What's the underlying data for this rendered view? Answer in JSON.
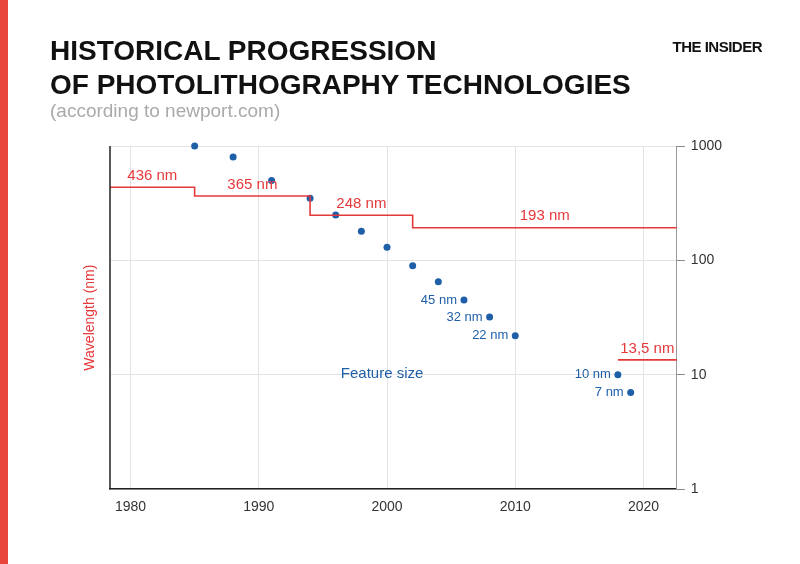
{
  "chart_data": {
    "type": "scatter",
    "title": [
      "HISTORICAL PROGRESSION",
      "OF PHOTOLITHOGRAPHY TECHNOLOGIES"
    ],
    "subtitle": "(according to newport.com)",
    "brand": "THE INSIDER",
    "y_label": "Wavelength (nm)",
    "series": [
      {
        "type": "line",
        "line_style": "step",
        "color": "#e5383b",
        "x": [
          1978.4,
          1985,
          1994,
          2002,
          2022.6
        ],
        "values": [
          436,
          365,
          248,
          193,
          193
        ],
        "value_labels": [
          "436 nm",
          "365 nm",
          "248 nm",
          "193 nm",
          null
        ]
      },
      {
        "type": "line",
        "line_style": "step",
        "color": "#e5383b",
        "x": [
          2018,
          2022.6
        ],
        "values": [
          13.5,
          13.5
        ],
        "value_labels": [
          "13,5 nm",
          null
        ]
      },
      {
        "name": "Feature size",
        "type": "scatter",
        "marker": "circle",
        "color": "#1f5fa8",
        "x": [
          1985,
          1988,
          1991,
          1994,
          1996,
          1998,
          2000,
          2002,
          2004,
          2006,
          2008,
          2010,
          2018,
          2019
        ],
        "values": [
          1000,
          800,
          500,
          350,
          250,
          180,
          130,
          90,
          65,
          45,
          32,
          22,
          10,
          7
        ],
        "value_labels": [
          null,
          null,
          null,
          null,
          null,
          null,
          null,
          null,
          null,
          "45 nm",
          "32 nm",
          "22 nm",
          "10 nm",
          "7 nm"
        ]
      }
    ],
    "xlim": [
      1978.4,
      2022.6
    ],
    "xticks": [
      1980,
      1990,
      2000,
      2010,
      2020
    ],
    "ylim": [
      1,
      1000
    ],
    "yticks": [
      1,
      10,
      100,
      1000
    ],
    "log": "y",
    "grid": true,
    "data_labels": true
  }
}
